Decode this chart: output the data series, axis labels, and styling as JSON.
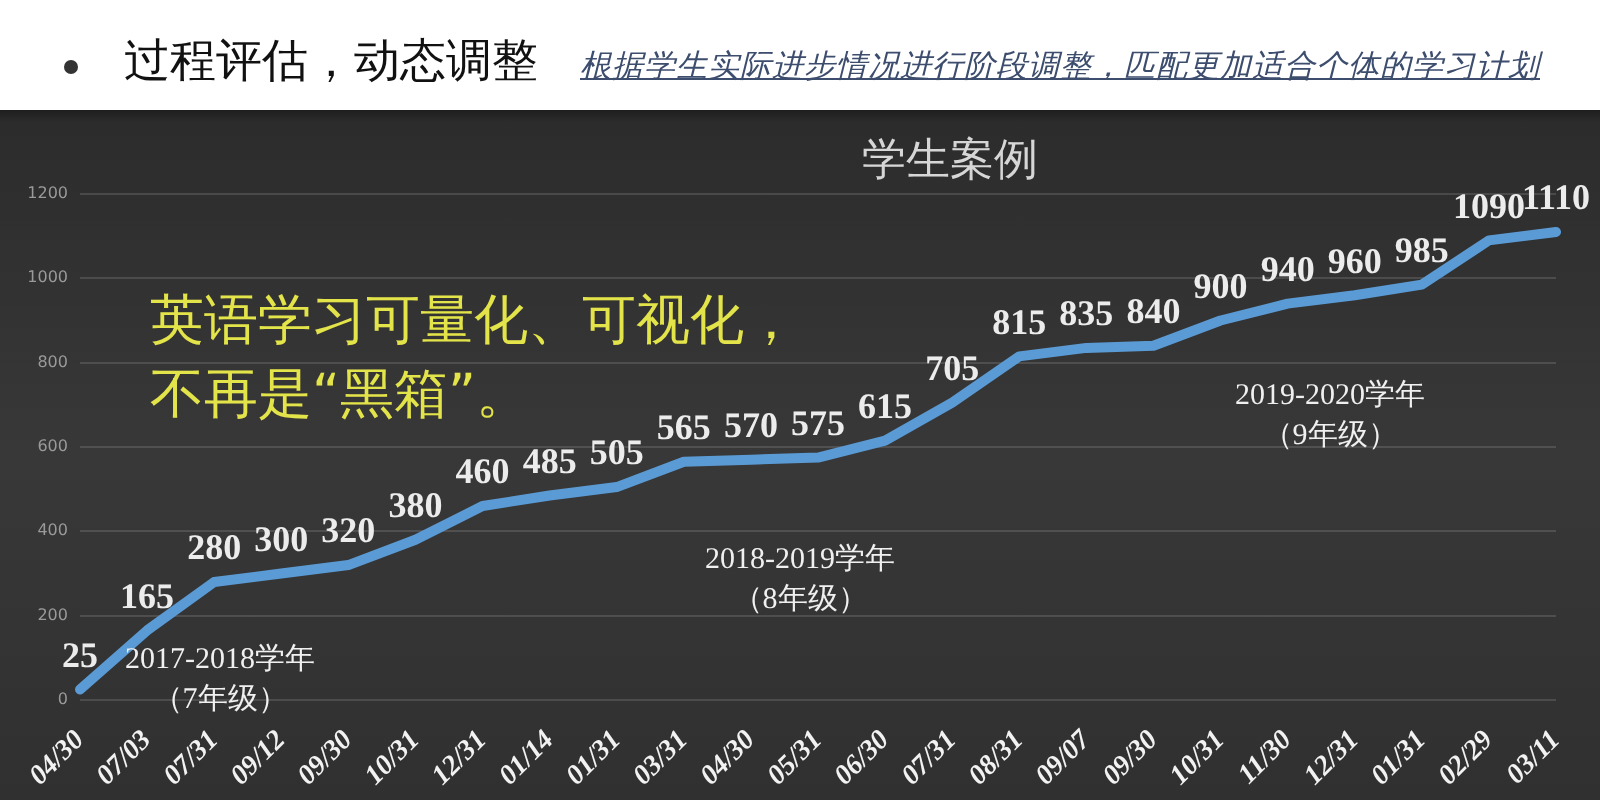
{
  "chart_data": {
    "type": "line",
    "title": "学生案例",
    "categories": [
      "04/30",
      "07/03",
      "07/31",
      "09/12",
      "09/30",
      "10/31",
      "12/31",
      "01/14",
      "01/31",
      "03/31",
      "04/30",
      "05/31",
      "06/30",
      "07/31",
      "08/31",
      "09/07",
      "09/30",
      "10/31",
      "11/30",
      "12/31",
      "01/31",
      "02/29",
      "03/11"
    ],
    "series": [
      {
        "color": "#5b9bd5",
        "values": [
          25,
          165,
          280,
          300,
          320,
          380,
          460,
          485,
          505,
          565,
          570,
          575,
          615,
          705,
          815,
          835,
          840,
          900,
          940,
          960,
          985,
          1090,
          1110
        ]
      }
    ],
    "ylim": [
      0,
      1200
    ],
    "yticks": [
      0,
      200,
      400,
      600,
      800,
      1000,
      1200
    ],
    "grid": "y",
    "marker": "none",
    "line_style": "solid",
    "data_labels": true,
    "annotations": [
      "过程评估，动态调整",
      "根据学生实际进步情况进行阶段调整，匹配更加适合个体的学习计划",
      "英语学习可量化、可视化，不再是“黑箱”。",
      "2017-2018学年（7年级）",
      "2018-2019学年（8年级）",
      "2019-2020学年（9年级）"
    ]
  }
}
